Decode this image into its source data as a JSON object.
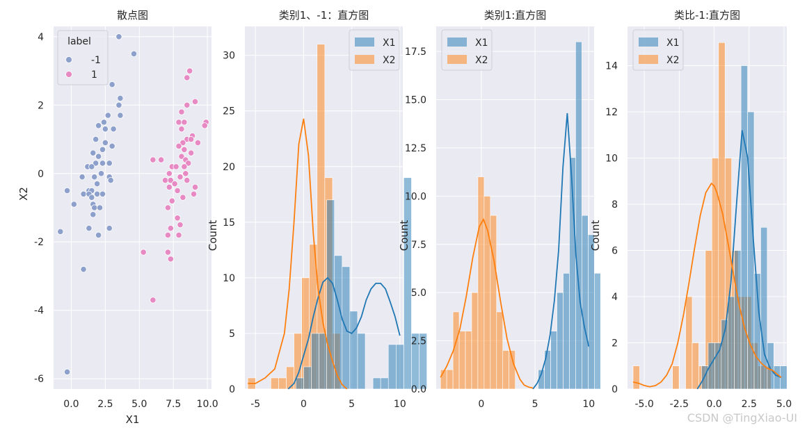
{
  "watermark": "CSDN @TingXiao-UI",
  "colors": {
    "blue": "#1f77b4",
    "orange": "#ff7f0e",
    "neg": "#8da0cb",
    "pos": "#e78ac3"
  },
  "chart_data": [
    {
      "type": "scatter",
      "title": "散点图",
      "xlabel": "X1",
      "ylabel": "X2",
      "xlim": [
        -1.3,
        10.3
      ],
      "ylim": [
        -6.3,
        4.3
      ],
      "xticks": [
        0.0,
        2.5,
        5.0,
        7.5,
        10.0
      ],
      "xtick_labels": [
        "0.0",
        "2.5",
        "5.0",
        "7.5",
        "10.0"
      ],
      "yticks": [
        -6,
        -4,
        -2,
        0,
        2,
        4
      ],
      "ytick_labels": [
        "-6",
        "-4",
        "-2",
        "0",
        "2",
        "4"
      ],
      "legend": {
        "title": "label",
        "entries": [
          "-1",
          "1"
        ],
        "placement": "top-left"
      },
      "series": [
        {
          "name": "-1",
          "points": [
            [
              3.5,
              4.0
            ],
            [
              4.6,
              3.5
            ],
            [
              3.0,
              2.6
            ],
            [
              3.6,
              2.2
            ],
            [
              3.5,
              2.0
            ],
            [
              3.6,
              1.7
            ],
            [
              2.7,
              1.7
            ],
            [
              2.4,
              1.5
            ],
            [
              2.0,
              1.4
            ],
            [
              2.5,
              1.3
            ],
            [
              3.1,
              1.3
            ],
            [
              1.8,
              1.0
            ],
            [
              2.5,
              0.9
            ],
            [
              2.3,
              0.7
            ],
            [
              3.0,
              0.8
            ],
            [
              1.6,
              0.6
            ],
            [
              2.0,
              0.5
            ],
            [
              1.8,
              0.3
            ],
            [
              2.3,
              0.3
            ],
            [
              2.8,
              0.3
            ],
            [
              1.2,
              0.2
            ],
            [
              1.5,
              0.2
            ],
            [
              2.2,
              0.0
            ],
            [
              2.8,
              -0.1
            ],
            [
              0.8,
              -0.1
            ],
            [
              1.7,
              -0.1
            ],
            [
              2.9,
              -0.2
            ],
            [
              1.9,
              -0.3
            ],
            [
              1.3,
              -0.5
            ],
            [
              1.5,
              -0.5
            ],
            [
              0.9,
              -0.6
            ],
            [
              1.3,
              -0.6
            ],
            [
              1.9,
              -0.6
            ],
            [
              2.3,
              -0.6
            ],
            [
              1.5,
              -0.7
            ],
            [
              0.2,
              -0.9
            ],
            [
              1.6,
              -0.9
            ],
            [
              1.7,
              -1.0
            ],
            [
              2.1,
              -1.0
            ],
            [
              1.6,
              -1.2
            ],
            [
              -0.3,
              -0.5
            ],
            [
              1.3,
              -1.6
            ],
            [
              2.8,
              -1.6
            ],
            [
              2.0,
              -1.8
            ],
            [
              -0.8,
              -1.7
            ],
            [
              0.9,
              -2.8
            ],
            [
              -0.3,
              -5.8
            ]
          ]
        },
        {
          "name": "1",
          "points": [
            [
              8.7,
              3.0
            ],
            [
              8.5,
              2.8
            ],
            [
              8.5,
              2.0
            ],
            [
              9.1,
              2.1
            ],
            [
              8.1,
              1.8
            ],
            [
              7.9,
              1.5
            ],
            [
              8.3,
              1.5
            ],
            [
              9.9,
              1.5
            ],
            [
              8.1,
              1.3
            ],
            [
              9.8,
              1.4
            ],
            [
              8.9,
              1.1
            ],
            [
              8.5,
              1.0
            ],
            [
              8.8,
              1.0
            ],
            [
              8.2,
              0.9
            ],
            [
              9.3,
              0.9
            ],
            [
              7.9,
              0.8
            ],
            [
              8.3,
              0.7
            ],
            [
              8.8,
              0.6
            ],
            [
              8.1,
              0.5
            ],
            [
              6.0,
              0.4
            ],
            [
              6.6,
              0.4
            ],
            [
              8.4,
              0.4
            ],
            [
              8.6,
              0.3
            ],
            [
              7.4,
              0.2
            ],
            [
              7.7,
              0.2
            ],
            [
              8.3,
              0.2
            ],
            [
              7.2,
              0.0
            ],
            [
              8.4,
              0.0
            ],
            [
              8.0,
              -0.1
            ],
            [
              6.9,
              -0.2
            ],
            [
              7.3,
              -0.2
            ],
            [
              7.6,
              -0.3
            ],
            [
              8.5,
              -0.2
            ],
            [
              9.1,
              -0.4
            ],
            [
              7.2,
              -0.4
            ],
            [
              7.8,
              -0.5
            ],
            [
              8.2,
              -0.7
            ],
            [
              7.4,
              -0.8
            ],
            [
              9.0,
              -0.6
            ],
            [
              7.1,
              -1.0
            ],
            [
              7.8,
              -1.3
            ],
            [
              8.0,
              -1.5
            ],
            [
              7.3,
              -1.6
            ],
            [
              7.1,
              -1.8
            ],
            [
              7.9,
              -1.8
            ],
            [
              5.3,
              -2.3
            ],
            [
              7.1,
              -2.3
            ],
            [
              7.3,
              -2.5
            ],
            [
              6.0,
              -3.7
            ]
          ]
        }
      ]
    },
    {
      "type": "histogram",
      "title": "类别1、-1：直方图",
      "xlabel": "",
      "ylabel": "Count",
      "xlim": [
        -6.1,
        10.3
      ],
      "ylim": [
        0,
        32.6
      ],
      "xticks": [
        -5,
        0,
        5,
        10
      ],
      "xtick_labels": [
        "-5",
        "0",
        "5",
        "10"
      ],
      "yticks": [
        0,
        5,
        10,
        15,
        20,
        25,
        30
      ],
      "ytick_labels": [
        "0",
        "5",
        "10",
        "15",
        "20",
        "25",
        "30"
      ],
      "legend": {
        "entries": [
          "X1",
          "X2"
        ],
        "placement": "top-right"
      },
      "series": [
        {
          "name": "X1",
          "bin_start": -0.8,
          "bin_width": 0.8,
          "counts": [
            1,
            2,
            5,
            5,
            17,
            12,
            11,
            7,
            5,
            0,
            1,
            1,
            4,
            4,
            19,
            5,
            5
          ]
        },
        {
          "name": "X2",
          "bin_start": -5.8,
          "bin_width": 0.8,
          "counts": [
            1,
            0,
            0,
            1,
            1,
            2,
            5,
            10,
            13,
            31,
            19,
            5,
            0,
            0,
            0,
            0
          ]
        },
        {
          "name": "X1 kde",
          "x": [
            -1.6,
            -1.0,
            -0.5,
            0,
            0.5,
            1.0,
            1.5,
            2.0,
            2.5,
            3.0,
            3.5,
            4.0,
            4.5,
            5.0,
            5.5,
            6.0,
            6.5,
            7.0,
            7.5,
            8.0,
            8.5,
            9.0,
            9.5,
            10.0
          ],
          "y": [
            0,
            0.5,
            1.5,
            3,
            4.5,
            6.5,
            8.2,
            9.6,
            10,
            9.5,
            8,
            6.3,
            5.2,
            5,
            5.5,
            6.5,
            8,
            9,
            9.5,
            9.5,
            9,
            7.8,
            6.5,
            4.8
          ]
        },
        {
          "name": "X2 kde",
          "x": [
            -5.8,
            -5,
            -4,
            -3,
            -2,
            -1.5,
            -1,
            -0.5,
            0,
            0.5,
            1,
            1.5,
            2,
            2.5,
            3,
            3.5,
            4,
            4.5
          ],
          "y": [
            0.5,
            0.5,
            1,
            1.8,
            5,
            9,
            15,
            22,
            24.3,
            21,
            14,
            9,
            6,
            4,
            2.5,
            1.2,
            0.4,
            0
          ]
        }
      ]
    },
    {
      "type": "histogram",
      "title": "类别1:直方图",
      "xlabel": "",
      "ylabel": "Count",
      "xlim": [
        -4.2,
        10.5
      ],
      "ylim": [
        0,
        18.8
      ],
      "xticks": [
        0,
        5,
        10
      ],
      "xtick_labels": [
        "0",
        "5",
        "10"
      ],
      "yticks": [
        0,
        2.5,
        5.0,
        7.5,
        10.0,
        12.5,
        15.0,
        17.5
      ],
      "ytick_labels": [
        "0.0",
        "2.5",
        "5.0",
        "7.5",
        "10.0",
        "12.5",
        "15.0",
        "17.5"
      ],
      "legend": {
        "entries": [
          "X1",
          "X2"
        ],
        "placement": "top-left"
      },
      "series": [
        {
          "name": "X1",
          "bin_start": 5.3,
          "bin_width": 0.58,
          "counts": [
            1,
            2,
            3,
            5,
            6,
            12,
            18,
            9,
            8,
            6
          ]
        },
        {
          "name": "X2",
          "bin_start": -3.8,
          "bin_width": 0.58,
          "counts": [
            1,
            1,
            4,
            3,
            3,
            5,
            11,
            10,
            9,
            4,
            2,
            2
          ]
        },
        {
          "name": "X1 kde",
          "x": [
            4.8,
            5.2,
            5.6,
            6,
            6.4,
            6.8,
            7.2,
            7.6,
            8,
            8.4,
            8.8,
            9.2,
            9.6,
            10
          ],
          "y": [
            0,
            0.3,
            0.8,
            1.6,
            2.8,
            4.6,
            7.2,
            11.5,
            14.3,
            11,
            7,
            4.5,
            3.2,
            2.2
          ]
        },
        {
          "name": "X2 kde",
          "x": [
            -3.8,
            -3.2,
            -2.6,
            -2,
            -1.4,
            -0.8,
            -0.2,
            0.2,
            0.6,
            1.2,
            1.8,
            2.4,
            3,
            3.6,
            4,
            4.4,
            4.8
          ],
          "y": [
            0.6,
            1.2,
            2,
            3.1,
            4.8,
            6.8,
            8.4,
            8.8,
            8.2,
            6.6,
            4.5,
            2.6,
            1.3,
            0.5,
            0.2,
            0.1,
            0.05
          ]
        }
      ]
    },
    {
      "type": "histogram",
      "title": "类比-1:直方图",
      "xlabel": "",
      "ylabel": "Count",
      "xlim": [
        -6.2,
        5.2
      ],
      "ylim": [
        0,
        15.7
      ],
      "xticks": [
        -5.0,
        -2.5,
        0.0,
        2.5,
        5.0
      ],
      "xtick_labels": [
        "-5.0",
        "-2.5",
        "0.0",
        "2.5",
        "5.0"
      ],
      "yticks": [
        0,
        2,
        4,
        6,
        8,
        10,
        12,
        14
      ],
      "ytick_labels": [
        "0",
        "2",
        "4",
        "6",
        "8",
        "10",
        "12",
        "14"
      ],
      "legend": {
        "entries": [
          "X1",
          "X2"
        ],
        "placement": "top-left"
      },
      "series": [
        {
          "name": "X1",
          "bin_start": -0.9,
          "bin_width": 0.47,
          "counts": [
            1,
            2,
            2,
            3,
            4,
            6,
            14,
            12,
            5,
            7,
            2,
            1,
            1
          ]
        },
        {
          "name": "X2",
          "bin_start": -5.8,
          "bin_width": 0.47,
          "counts": [
            1,
            0,
            0,
            0,
            0,
            0,
            1,
            0,
            4,
            2,
            1,
            6,
            10,
            15,
            10,
            6,
            4,
            4,
            2,
            1,
            1
          ]
        },
        {
          "name": "X1 kde",
          "x": [
            -1.2,
            -0.8,
            -0.4,
            0,
            0.4,
            0.8,
            1.2,
            1.6,
            2,
            2.4,
            2.8,
            3.2,
            3.6,
            4,
            4.4,
            4.8
          ],
          "y": [
            0,
            0.4,
            0.9,
            1.3,
            1.7,
            2.6,
            4.6,
            8,
            11.2,
            10,
            6.5,
            3.3,
            1.5,
            0.9,
            0.6,
            0.5
          ]
        },
        {
          "name": "X2 kde",
          "x": [
            -5.8,
            -5.4,
            -5,
            -4.6,
            -4.2,
            -3.8,
            -3.4,
            -3,
            -2.6,
            -2.2,
            -1.8,
            -1.4,
            -1,
            -0.6,
            -0.2,
            0,
            0.2,
            0.6,
            1,
            1.4,
            1.8,
            2.2,
            2.6,
            3,
            3.4,
            3.8,
            4.2,
            4.6,
            4.8
          ],
          "y": [
            0.3,
            0.25,
            0.15,
            0.1,
            0.15,
            0.3,
            0.6,
            1.1,
            2,
            3.2,
            4.6,
            6.1,
            7.5,
            8.5,
            8.9,
            8.8,
            8.5,
            7.6,
            6.3,
            4.9,
            3.6,
            2.6,
            1.9,
            1.4,
            1.1,
            0.9,
            0.8,
            0.6,
            0.5
          ]
        }
      ]
    }
  ]
}
